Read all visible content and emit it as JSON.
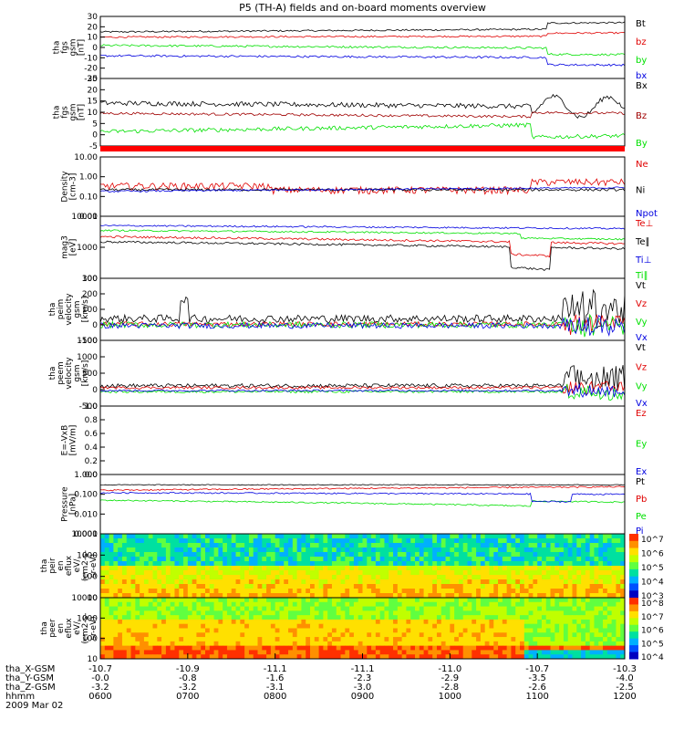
{
  "title": "P5 (TH-A) fields and on-board moments overview",
  "colors": {
    "black": "#000000",
    "red": "#e00000",
    "green": "#00e000",
    "blue": "#0000e0",
    "dkred": "#a00000"
  },
  "chart_data": [
    {
      "type": "line",
      "panel": "fgs_gsm",
      "ylabel": [
        "tha",
        "fgs",
        "gsm",
        "[nT]"
      ],
      "yticks": [
        "30",
        "20",
        "10",
        "0",
        "-10",
        "-20",
        "-30"
      ],
      "ylim": [
        -30,
        30
      ],
      "series": [
        {
          "name": "Bt",
          "color": "#000000"
        },
        {
          "name": "bz",
          "color": "#e00000"
        },
        {
          "name": "by",
          "color": "#00e000"
        },
        {
          "name": "bx",
          "color": "#0000e0"
        }
      ]
    },
    {
      "type": "line",
      "panel": "fgs_dsl",
      "ylabel": [
        "tha",
        "fgs",
        "gsm",
        "[nT]"
      ],
      "yticks": [
        "25",
        "20",
        "15",
        "10",
        "5",
        "0",
        "-5"
      ],
      "ylim": [
        -8,
        25
      ],
      "series": [
        {
          "name": "Bx",
          "color": "#000000"
        },
        {
          "name": "Bz",
          "color": "#a00000"
        },
        {
          "name": "By",
          "color": "#00e000"
        }
      ]
    },
    {
      "type": "line",
      "panel": "density",
      "ylabel": [
        "Density",
        "[cm-3]"
      ],
      "yticks": [
        "10.00",
        "1.00",
        "0.10",
        "0.01"
      ],
      "ylim": [
        0.01,
        10
      ],
      "log": true,
      "series": [
        {
          "name": "Ne",
          "color": "#e00000"
        },
        {
          "name": "Ni",
          "color": "#000000"
        },
        {
          "name": "Npot",
          "color": "#0000e0"
        }
      ]
    },
    {
      "type": "line",
      "panel": "temperature",
      "ylabel": [
        "mag3",
        "[eV]"
      ],
      "yticks": [
        "10000",
        "1000",
        "100"
      ],
      "ylim": [
        100,
        10000
      ],
      "log": true,
      "series": [
        {
          "name": "Te⊥",
          "color": "#e00000"
        },
        {
          "name": "Te∥",
          "color": "#000000"
        },
        {
          "name": "Ti⊥",
          "color": "#0000e0"
        },
        {
          "name": "Ti∥",
          "color": "#00e000"
        }
      ]
    },
    {
      "type": "line",
      "panel": "peim_velocity",
      "ylabel": [
        "tha",
        "peim",
        "velocity",
        "gsm",
        "[km/s]"
      ],
      "yticks": [
        "300",
        "200",
        "100",
        "0",
        "-100"
      ],
      "ylim": [
        -100,
        300
      ],
      "series": [
        {
          "name": "Vt",
          "color": "#000000"
        },
        {
          "name": "Vz",
          "color": "#e00000"
        },
        {
          "name": "Vy",
          "color": "#00e000"
        },
        {
          "name": "Vx",
          "color": "#0000e0"
        }
      ]
    },
    {
      "type": "line",
      "panel": "peem_velocity",
      "ylabel": [
        "tha",
        "peem",
        "velocity",
        "gsm",
        "[km/s]"
      ],
      "yticks": [
        "1500",
        "1000",
        "500",
        "0",
        "-500"
      ],
      "ylim": [
        -500,
        1500
      ],
      "series": [
        {
          "name": "Vt",
          "color": "#000000"
        },
        {
          "name": "Vz",
          "color": "#e00000"
        },
        {
          "name": "Vy",
          "color": "#00e000"
        },
        {
          "name": "Vx",
          "color": "#0000e0"
        }
      ]
    },
    {
      "type": "line",
      "panel": "efield",
      "ylabel": [
        "E=-VxB",
        "[mV/m]"
      ],
      "yticks": [
        "1.0",
        "0.8",
        "0.6",
        "0.4",
        "0.2",
        "0.0"
      ],
      "ylim": [
        0,
        1
      ],
      "series": [
        {
          "name": "Ez",
          "color": "#e00000"
        },
        {
          "name": "Ey",
          "color": "#00e000"
        },
        {
          "name": "Ex",
          "color": "#0000e0"
        }
      ]
    },
    {
      "type": "line",
      "panel": "pressure",
      "ylabel": [
        "Pressure",
        "[nPa]"
      ],
      "yticks": [
        "1.000",
        "0.100",
        "0.010",
        "0.001"
      ],
      "ylim": [
        0.001,
        1
      ],
      "log": true,
      "series": [
        {
          "name": "Pt",
          "color": "#000000"
        },
        {
          "name": "Pb",
          "color": "#e00000"
        },
        {
          "name": "Pe",
          "color": "#00e000"
        },
        {
          "name": "Pi",
          "color": "#0000e0"
        }
      ]
    },
    {
      "type": "heatmap",
      "panel": "peir_eflux",
      "ylabel": [
        "tha",
        "peir",
        "en",
        "eflux",
        "eV/",
        "(cm2-s-",
        "sr-eV)"
      ],
      "yticks": [
        "10000",
        "1000",
        "100",
        "10"
      ],
      "ylim": [
        10,
        30000
      ],
      "colorbar": {
        "ticks": [
          "10^7",
          "10^6",
          "10^5",
          "10^4",
          "10^3"
        ]
      }
    },
    {
      "type": "heatmap",
      "panel": "peer_eflux",
      "ylabel": [
        "tha",
        "peer",
        "en",
        "eflux",
        "eV/",
        "(cm2-s-",
        "sr-eV)"
      ],
      "yticks": [
        "10000",
        "1000",
        "100",
        "10"
      ],
      "ylim": [
        10,
        30000
      ],
      "colorbar": {
        "ticks": [
          "10^8",
          "10^7",
          "10^6",
          "10^5",
          "10^4"
        ]
      }
    }
  ],
  "xaxis": {
    "rows": [
      {
        "label": "tha_X-GSM",
        "values": [
          "-10.7",
          "-10.9",
          "-11.1",
          "-11.1",
          "-11.0",
          "-10.7",
          "-10.3"
        ]
      },
      {
        "label": "tha_Y-GSM",
        "values": [
          "-0.0",
          "-0.8",
          "-1.6",
          "-2.3",
          "-2.9",
          "-3.5",
          "-4.0"
        ]
      },
      {
        "label": "tha_Z-GSM",
        "values": [
          "-3.2",
          "-3.2",
          "-3.1",
          "-3.0",
          "-2.8",
          "-2.6",
          "-2.5"
        ]
      },
      {
        "label": "hhmm",
        "values": [
          "0600",
          "0700",
          "0800",
          "0900",
          "1000",
          "1100",
          "1200"
        ]
      }
    ],
    "date": "2009 Mar 02"
  }
}
